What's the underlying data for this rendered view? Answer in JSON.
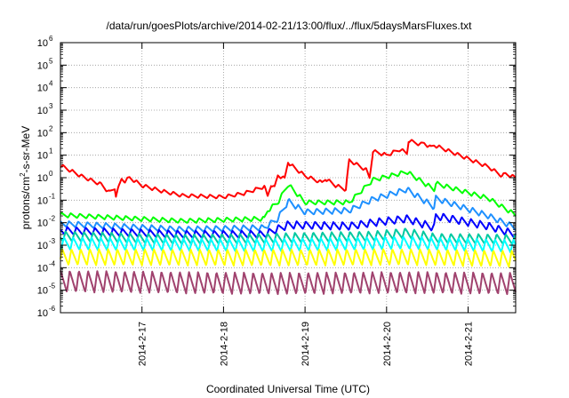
{
  "chart_data": {
    "type": "line",
    "title": "/data/run/goesPlots/archive/2014-02-21/13:00/flux/../flux/5daysMarsFluxes.txt",
    "xlabel": "Coordinated Universal Time (UTC)",
    "ylabel": {
      "prefix": "protons/cm",
      "sup": "2",
      "suffix": "-s-sr-MeV"
    },
    "yscale": "log",
    "ylim": [
      1e-06,
      1000000.0
    ],
    "ytick_exponents": [
      -6,
      -5,
      -4,
      -3,
      -2,
      -1,
      0,
      1,
      2,
      3,
      4,
      5,
      6
    ],
    "ytick_base": "10",
    "xlim": [
      "2014-02-16 00:00",
      "2014-02-21 14:00"
    ],
    "xticks": [
      "2014-2-17",
      "2014-2-18",
      "2014-2-19",
      "2014-2-20",
      "2014-2-21"
    ],
    "grid": true,
    "legend": "none",
    "series": [
      {
        "color": "#ff0000",
        "points": [
          [
            "2014-02-16 00:00",
            3.5
          ],
          [
            "2014-02-16 06:00",
            1.2
          ],
          [
            "2014-02-16 12:00",
            0.5
          ],
          [
            "2014-02-16 14:24",
            0.22
          ],
          [
            "2014-02-16 16:00",
            0.35
          ],
          [
            "2014-02-16 16:20",
            0.16
          ],
          [
            "2014-02-16 18:00",
            0.9
          ],
          [
            "2014-02-16 19:00",
            0.7
          ],
          [
            "2014-02-16 20:20",
            1.0
          ],
          [
            "2014-02-17 00:00",
            0.45
          ],
          [
            "2014-02-17 06:00",
            0.25
          ],
          [
            "2014-02-17 12:00",
            0.16
          ],
          [
            "2014-02-18 00:00",
            0.14
          ],
          [
            "2014-02-18 06:00",
            0.2
          ],
          [
            "2014-02-18 12:00",
            0.4
          ],
          [
            "2014-02-18 13:00",
            0.15
          ],
          [
            "2014-02-18 14:00",
            0.5
          ],
          [
            "2014-02-18 15:00",
            0.35
          ],
          [
            "2014-02-18 16:00",
            1.3
          ],
          [
            "2014-02-18 18:00",
            0.9
          ],
          [
            "2014-02-18 19:00",
            5.0
          ],
          [
            "2014-02-18 20:00",
            3.5
          ],
          [
            "2014-02-19 00:00",
            1.2
          ],
          [
            "2014-02-19 05:00",
            0.6
          ],
          [
            "2014-02-19 06:00",
            0.9
          ],
          [
            "2014-02-19 09:00",
            0.45
          ],
          [
            "2014-02-19 12:00",
            0.3
          ],
          [
            "2014-02-19 13:00",
            6.0
          ],
          [
            "2014-02-19 18:00",
            2.2
          ],
          [
            "2014-02-19 19:00",
            1.0
          ],
          [
            "2014-02-19 20:00",
            15
          ],
          [
            "2014-02-20 00:00",
            10
          ],
          [
            "2014-02-20 04:00",
            18
          ],
          [
            "2014-02-20 06:00",
            12
          ],
          [
            "2014-02-20 06:30",
            45
          ],
          [
            "2014-02-20 10:00",
            30
          ],
          [
            "2014-02-20 11:00",
            35
          ],
          [
            "2014-02-20 13:00",
            22
          ],
          [
            "2014-02-20 14:00",
            28
          ],
          [
            "2014-02-20 18:00",
            16
          ],
          [
            "2014-02-21 00:00",
            7
          ],
          [
            "2014-02-21 06:00",
            3
          ],
          [
            "2014-02-21 10:00",
            1.2
          ],
          [
            "2014-02-21 11:00",
            1.5
          ],
          [
            "2014-02-21 14:00",
            1.0
          ]
        ]
      },
      {
        "color": "#00ff00",
        "points": [
          [
            "2014-02-16 00:00",
            0.022
          ],
          [
            "2014-02-17 12:00",
            0.012
          ],
          [
            "2014-02-18 12:00",
            0.015
          ],
          [
            "2014-02-18 13:00",
            0.035
          ],
          [
            "2014-02-18 16:00",
            0.08
          ],
          [
            "2014-02-18 19:00",
            0.5
          ],
          [
            "2014-02-19 00:00",
            0.08
          ],
          [
            "2014-02-19 13:00",
            0.08
          ],
          [
            "2014-02-19 20:00",
            0.8
          ],
          [
            "2014-02-20 06:00",
            1.8
          ],
          [
            "2014-02-20 14:00",
            0.3
          ],
          [
            "2014-02-20 14:30",
            0.55
          ],
          [
            "2014-02-21 06:00",
            0.12
          ],
          [
            "2014-02-21 14:00",
            0.022
          ]
        ]
      },
      {
        "color": "#1e90ff",
        "points": [
          [
            "2014-02-16 00:00",
            0.009
          ],
          [
            "2014-02-17 12:00",
            0.005
          ],
          [
            "2014-02-18 12:00",
            0.006
          ],
          [
            "2014-02-18 16:00",
            0.015
          ],
          [
            "2014-02-18 19:00",
            0.09
          ],
          [
            "2014-02-19 00:00",
            0.03
          ],
          [
            "2014-02-19 13:00",
            0.035
          ],
          [
            "2014-02-19 20:00",
            0.11
          ],
          [
            "2014-02-20 06:00",
            0.3
          ],
          [
            "2014-02-20 14:00",
            0.05
          ],
          [
            "2014-02-20 14:30",
            0.12
          ],
          [
            "2014-02-21 06:00",
            0.02
          ],
          [
            "2014-02-21 14:00",
            0.006
          ]
        ]
      },
      {
        "color": "#0000ff",
        "points": [
          [
            "2014-02-16 00:00",
            0.0045
          ],
          [
            "2014-02-17 12:00",
            0.003
          ],
          [
            "2014-02-18 12:00",
            0.003
          ],
          [
            "2014-02-18 19:00",
            0.008
          ],
          [
            "2014-02-19 13:00",
            0.007
          ],
          [
            "2014-02-19 20:00",
            0.01
          ],
          [
            "2014-02-20 06:00",
            0.015
          ],
          [
            "2014-02-20 14:00",
            0.006
          ],
          [
            "2014-02-20 14:30",
            0.02
          ],
          [
            "2014-02-21 06:00",
            0.007
          ],
          [
            "2014-02-21 14:00",
            0.003
          ]
        ]
      },
      {
        "color": "#00c8a0",
        "points": [
          [
            "2014-02-16 00:00",
            0.0025
          ],
          [
            "2014-02-17 12:00",
            0.0018
          ],
          [
            "2014-02-18 12:00",
            0.002
          ],
          [
            "2014-02-19 20:00",
            0.0025
          ],
          [
            "2014-02-20 06:00",
            0.0035
          ],
          [
            "2014-02-20 14:00",
            0.002
          ],
          [
            "2014-02-21 14:00",
            0.0018
          ]
        ]
      },
      {
        "color": "#00ffff",
        "points": [
          [
            "2014-02-16 00:00",
            0.0012
          ],
          [
            "2014-02-18 12:00",
            0.001
          ],
          [
            "2014-02-20 06:00",
            0.0013
          ],
          [
            "2014-02-21 14:00",
            0.0009
          ]
        ]
      },
      {
        "color": "#ffff00",
        "points": [
          [
            "2014-02-16 00:00",
            0.0003
          ],
          [
            "2014-02-18 12:00",
            0.00028
          ],
          [
            "2014-02-20 06:00",
            0.0003
          ],
          [
            "2014-02-21 14:00",
            0.00025
          ]
        ]
      },
      {
        "color": "#a0426e",
        "points": [
          [
            "2014-02-16 00:00",
            2.5e-05
          ],
          [
            "2014-02-18 12:00",
            2e-05
          ],
          [
            "2014-02-20 06:00",
            2.2e-05
          ],
          [
            "2014-02-21 14:00",
            2e-05
          ]
        ]
      }
    ]
  }
}
